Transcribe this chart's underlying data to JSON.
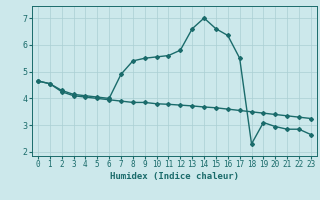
{
  "xlabel": "Humidex (Indice chaleur)",
  "bg_color": "#cce8eb",
  "line_color": "#1a6b6b",
  "grid_color": "#aacfd4",
  "line1_x": [
    0,
    1,
    2,
    3,
    4,
    5,
    6,
    7,
    8,
    9,
    10,
    11,
    12,
    13,
    14,
    15,
    16,
    17,
    18,
    19,
    20,
    21,
    22,
    23
  ],
  "line1_y": [
    4.65,
    4.55,
    4.25,
    4.1,
    4.05,
    4.0,
    3.95,
    3.9,
    3.85,
    3.85,
    3.8,
    3.78,
    3.75,
    3.72,
    3.68,
    3.65,
    3.6,
    3.55,
    3.5,
    3.45,
    3.4,
    3.35,
    3.3,
    3.25
  ],
  "line2_x": [
    0,
    1,
    2,
    3,
    4,
    5,
    6,
    7,
    8,
    9,
    10,
    11,
    12,
    13,
    14,
    15,
    16,
    17,
    18,
    19,
    20,
    21,
    22,
    23
  ],
  "line2_y": [
    4.65,
    4.55,
    4.3,
    4.15,
    4.1,
    4.05,
    4.0,
    4.9,
    5.4,
    5.5,
    5.55,
    5.6,
    5.8,
    6.6,
    7.0,
    6.6,
    6.35,
    5.5,
    2.3,
    3.1,
    2.95,
    2.85,
    2.85,
    2.65
  ],
  "xlim": [
    -0.5,
    23.5
  ],
  "ylim": [
    1.85,
    7.45
  ],
  "yticks": [
    2,
    3,
    4,
    5,
    6,
    7
  ],
  "xticks": [
    0,
    1,
    2,
    3,
    4,
    5,
    6,
    7,
    8,
    9,
    10,
    11,
    12,
    13,
    14,
    15,
    16,
    17,
    18,
    19,
    20,
    21,
    22,
    23
  ],
  "markersize": 2.0,
  "linewidth": 1.0,
  "tick_fontsize": 5.5,
  "xlabel_fontsize": 6.5
}
